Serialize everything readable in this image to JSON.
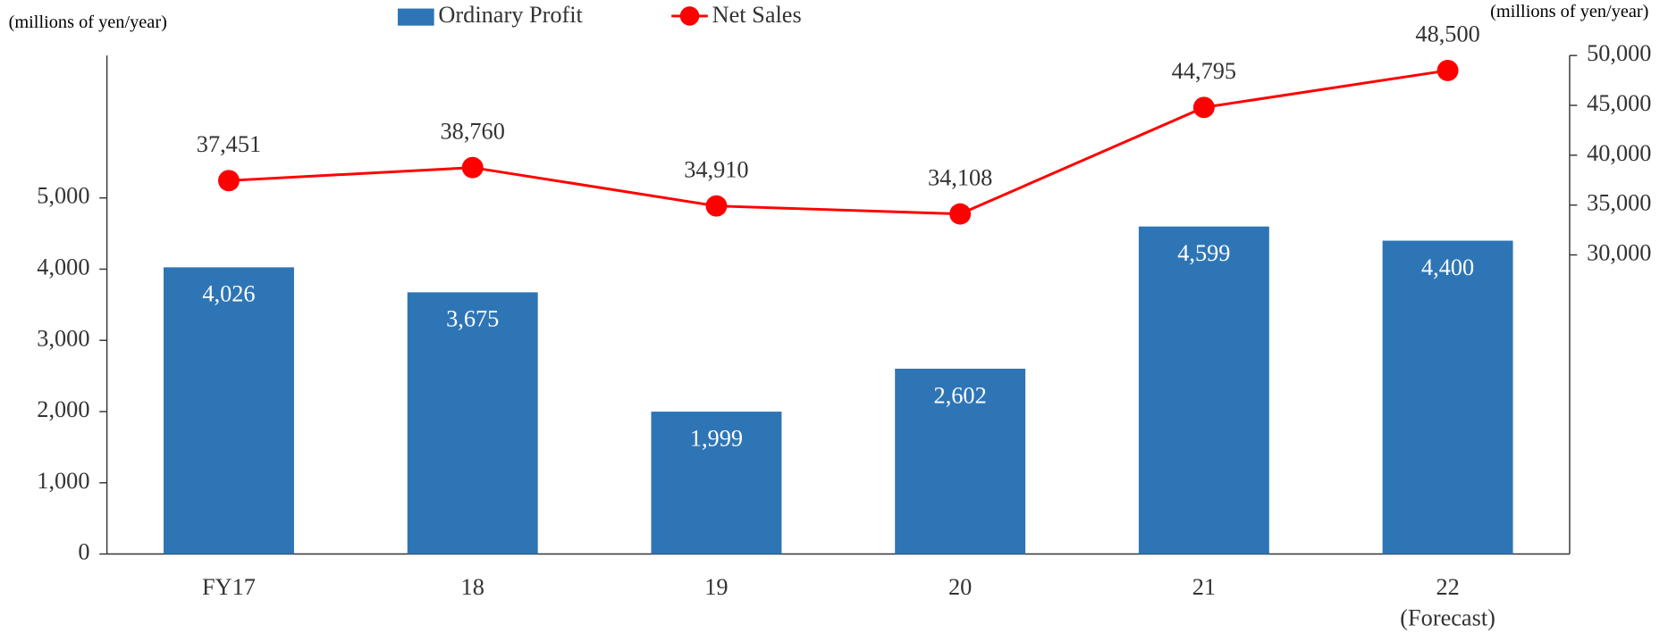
{
  "chart_data": {
    "type": "bar_line",
    "y_axis_label": "(millions  of yen/year)",
    "y2_axis_label": "(millions  of yen/year)",
    "categories": [
      "FY17",
      "18",
      "19",
      "20",
      "21",
      "22"
    ],
    "x_annotation": "(Forecast)",
    "series": [
      {
        "name": "Ordinary Profit",
        "type": "bar",
        "color": "#2e75b6",
        "values": [
          4026,
          3675,
          1999,
          2602,
          4599,
          4400
        ],
        "value_labels": [
          "4,026",
          "3,675",
          "1,999",
          "2,602",
          "4,599",
          "4,400"
        ]
      },
      {
        "name": "Net Sales",
        "type": "line",
        "axis": "y2",
        "color": "#ff0000",
        "values": [
          37451,
          38760,
          34910,
          34108,
          44795,
          48500
        ],
        "value_labels": [
          "37,451",
          "38,760",
          "34,910",
          "34,108",
          "44,795",
          "48,500"
        ]
      }
    ],
    "ylim": [
      0,
      7000
    ],
    "yticks": [
      0,
      {
        "value": 1000,
        "label": "1,000"
      },
      {
        "value": 2000,
        "label": "2,000"
      },
      {
        "value": 3000,
        "label": "3,000"
      },
      {
        "value": 4000,
        "label": "4,000"
      },
      {
        "value": 5000,
        "label": "5,000"
      }
    ],
    "y2lim": [
      0,
      50000
    ],
    "y2ticks": [
      {
        "value": 30000,
        "label": "30,000"
      },
      {
        "value": 35000,
        "label": "35,000"
      },
      {
        "value": 40000,
        "label": "40,000"
      },
      {
        "value": 45000,
        "label": "45,000"
      },
      {
        "value": 50000,
        "label": "50,000"
      }
    ],
    "legend": "top"
  }
}
